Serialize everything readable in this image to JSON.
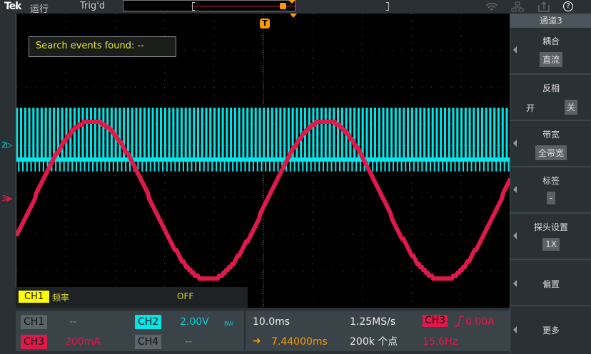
{
  "topbar": {
    "logo": "Tek",
    "run_state": "运行",
    "trigger_state": "Trig'd",
    "icons": [
      "wifi-icon",
      "network-icon",
      "export-icon",
      "help-icon"
    ],
    "help_glyph": "?"
  },
  "scope": {
    "search_text": "Search events found:  --",
    "trigger_marker": "T",
    "ch2_marker": "2",
    "ch3_marker": "3",
    "colors": {
      "ch1": "#ffff00",
      "ch2": "#00e5e8",
      "ch3": "#e0194b",
      "trigger": "#ff9900"
    }
  },
  "measurement": {
    "channel": "CH1",
    "type": "频率",
    "value": "OFF"
  },
  "channels": {
    "ch1": {
      "label": "CH1",
      "value": "--"
    },
    "ch2": {
      "label": "CH2",
      "value": "2.00V",
      "bw": "BW"
    },
    "ch3": {
      "label": "CH3",
      "value": "200mA"
    },
    "ch4": {
      "label": "CH4",
      "value": "--"
    }
  },
  "timebase": {
    "scale": "10.0ms",
    "sample_rate": "1.25MS/s",
    "position": "7.44000ms",
    "record_length": "200k 个点"
  },
  "trigger": {
    "source": "CH3",
    "slope": "rising",
    "level": "0.00A",
    "frequency": "15.6Hz"
  },
  "sidebar": {
    "title": "通道3",
    "sections": [
      {
        "label": "耦合",
        "value": "直流"
      },
      {
        "label": "反相",
        "option_on": "开",
        "option_off": "关",
        "selected": "关"
      },
      {
        "label": "带宽",
        "value": "全带宽"
      },
      {
        "label": "标签",
        "value": "-"
      },
      {
        "label": "探头设置",
        "value": "1X"
      },
      {
        "label": "偏置"
      },
      {
        "label": "更多"
      }
    ]
  }
}
